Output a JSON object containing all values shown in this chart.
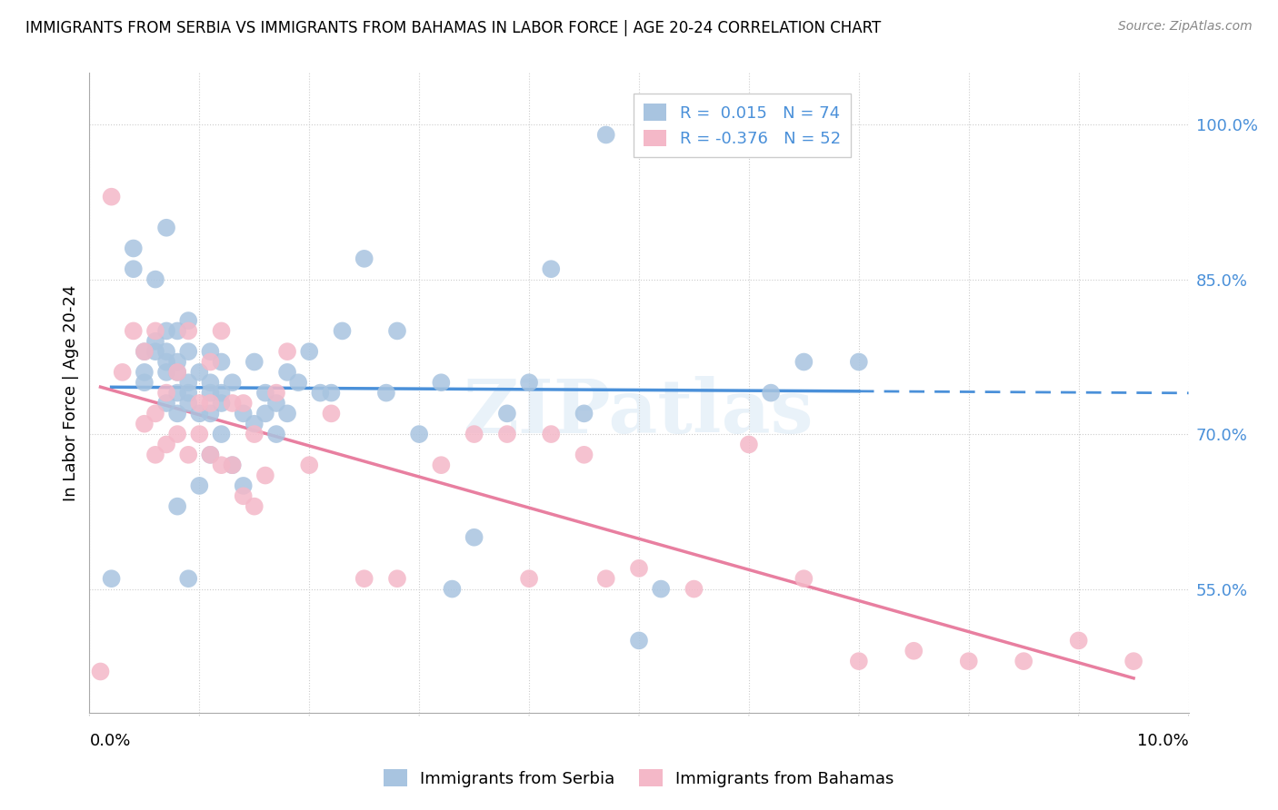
{
  "title": "IMMIGRANTS FROM SERBIA VS IMMIGRANTS FROM BAHAMAS IN LABOR FORCE | AGE 20-24 CORRELATION CHART",
  "source": "Source: ZipAtlas.com",
  "ylabel": "In Labor Force | Age 20-24",
  "right_yticks": [
    0.55,
    0.7,
    0.85,
    1.0
  ],
  "right_yticklabels": [
    "55.0%",
    "70.0%",
    "85.0%",
    "100.0%"
  ],
  "xlim": [
    0.0,
    0.1
  ],
  "ylim": [
    0.43,
    1.05
  ],
  "serbia_R": 0.015,
  "serbia_N": 74,
  "bahamas_R": -0.376,
  "bahamas_N": 52,
  "serbia_color": "#a8c4e0",
  "bahamas_color": "#f4b8c8",
  "serbia_line_color": "#4a90d9",
  "bahamas_line_color": "#e87fa0",
  "serbia_x": [
    0.002,
    0.004,
    0.004,
    0.005,
    0.005,
    0.005,
    0.006,
    0.006,
    0.006,
    0.007,
    0.007,
    0.007,
    0.007,
    0.007,
    0.007,
    0.008,
    0.008,
    0.008,
    0.008,
    0.008,
    0.008,
    0.009,
    0.009,
    0.009,
    0.009,
    0.009,
    0.009,
    0.01,
    0.01,
    0.01,
    0.011,
    0.011,
    0.011,
    0.011,
    0.011,
    0.012,
    0.012,
    0.012,
    0.012,
    0.013,
    0.013,
    0.014,
    0.014,
    0.015,
    0.015,
    0.016,
    0.016,
    0.017,
    0.017,
    0.018,
    0.018,
    0.019,
    0.02,
    0.021,
    0.022,
    0.023,
    0.025,
    0.027,
    0.028,
    0.03,
    0.032,
    0.033,
    0.035,
    0.038,
    0.04,
    0.042,
    0.045,
    0.047,
    0.05,
    0.052,
    0.055,
    0.062,
    0.065,
    0.07
  ],
  "serbia_y": [
    0.56,
    0.86,
    0.88,
    0.75,
    0.76,
    0.78,
    0.78,
    0.79,
    0.85,
    0.73,
    0.76,
    0.77,
    0.78,
    0.8,
    0.9,
    0.63,
    0.72,
    0.74,
    0.76,
    0.77,
    0.8,
    0.56,
    0.73,
    0.74,
    0.75,
    0.78,
    0.81,
    0.65,
    0.72,
    0.76,
    0.68,
    0.72,
    0.74,
    0.75,
    0.78,
    0.7,
    0.73,
    0.74,
    0.77,
    0.67,
    0.75,
    0.65,
    0.72,
    0.71,
    0.77,
    0.72,
    0.74,
    0.7,
    0.73,
    0.72,
    0.76,
    0.75,
    0.78,
    0.74,
    0.74,
    0.8,
    0.87,
    0.74,
    0.8,
    0.7,
    0.75,
    0.55,
    0.6,
    0.72,
    0.75,
    0.86,
    0.72,
    0.99,
    0.5,
    0.55,
    0.99,
    0.74,
    0.77,
    0.77
  ],
  "bahamas_x": [
    0.001,
    0.002,
    0.003,
    0.004,
    0.005,
    0.005,
    0.006,
    0.006,
    0.006,
    0.007,
    0.007,
    0.008,
    0.008,
    0.009,
    0.009,
    0.01,
    0.01,
    0.011,
    0.011,
    0.011,
    0.012,
    0.012,
    0.013,
    0.013,
    0.014,
    0.014,
    0.015,
    0.015,
    0.016,
    0.017,
    0.018,
    0.02,
    0.022,
    0.025,
    0.028,
    0.032,
    0.035,
    0.038,
    0.04,
    0.042,
    0.045,
    0.047,
    0.05,
    0.055,
    0.06,
    0.065,
    0.07,
    0.075,
    0.08,
    0.085,
    0.09,
    0.095
  ],
  "bahamas_y": [
    0.47,
    0.93,
    0.76,
    0.8,
    0.71,
    0.78,
    0.68,
    0.72,
    0.8,
    0.69,
    0.74,
    0.7,
    0.76,
    0.68,
    0.8,
    0.7,
    0.73,
    0.68,
    0.73,
    0.77,
    0.67,
    0.8,
    0.67,
    0.73,
    0.64,
    0.73,
    0.63,
    0.7,
    0.66,
    0.74,
    0.78,
    0.67,
    0.72,
    0.56,
    0.56,
    0.67,
    0.7,
    0.7,
    0.56,
    0.7,
    0.68,
    0.56,
    0.57,
    0.55,
    0.69,
    0.56,
    0.48,
    0.49,
    0.48,
    0.48,
    0.5,
    0.48
  ]
}
